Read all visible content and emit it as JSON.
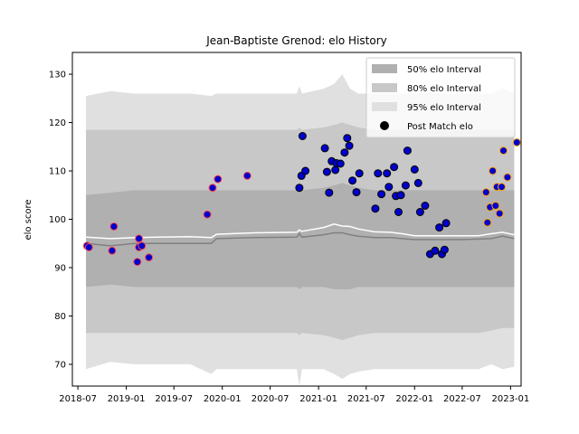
{
  "chart_data": {
    "type": "scatter",
    "title": "Jean-Baptiste Grenod: elo History",
    "xlabel": "",
    "ylabel": "elo score",
    "x_tick_labels": [
      "2018-07",
      "2019-01",
      "2019-07",
      "2020-01",
      "2020-07",
      "2021-01",
      "2021-07",
      "2022-01",
      "2022-07",
      "2023-01"
    ],
    "y_ticks": [
      70,
      80,
      90,
      100,
      110,
      120,
      130
    ],
    "ylim": [
      65.5,
      134.5
    ],
    "xlim": [
      "2018-06-10",
      "2023-02-10"
    ],
    "grid": false,
    "legend_position": "upper right",
    "legend": {
      "band50": "50% elo Interval",
      "band80": "80% elo Interval",
      "band95": "95% elo Interval",
      "points": "Post Match elo"
    },
    "colors": {
      "band50": "#b0b0b0",
      "band80": "#c8c8c8",
      "band95": "#e0e0e0",
      "median_line": "#808080",
      "mean_line": "#ffffff",
      "point_fill": "#0000cc",
      "point_edge_default": "#000000",
      "point_edge_red": "#ff4d4d",
      "point_edge_orange": "#ffa500"
    },
    "bands": {
      "x": [
        "2018-08-01",
        "2018-11-01",
        "2019-02-01",
        "2019-05-01",
        "2019-09-01",
        "2019-11-20",
        "2019-12-10",
        "2020-05-01",
        "2020-10-10",
        "2020-10-20",
        "2020-10-30",
        "2021-01-20",
        "2021-03-01",
        "2021-04-01",
        "2021-05-01",
        "2021-06-01",
        "2021-08-01",
        "2021-10-01",
        "2021-11-15",
        "2022-01-01",
        "2022-03-01",
        "2022-05-01",
        "2022-07-01",
        "2022-09-01",
        "2022-10-20",
        "2022-12-01",
        "2023-01-15"
      ],
      "p95_upper": [
        125.5,
        126.5,
        126,
        126,
        126,
        125.5,
        126,
        126,
        126,
        127.5,
        126,
        127,
        128,
        130,
        127,
        126,
        126,
        126,
        126,
        126,
        126,
        126,
        126,
        126,
        126,
        127,
        126
      ],
      "p95_lower": [
        69,
        70.5,
        70,
        70,
        70,
        68,
        69,
        69,
        69,
        65.5,
        69,
        69,
        68,
        67,
        68,
        68.5,
        69,
        69,
        69,
        69,
        69,
        69,
        69,
        69,
        70,
        69,
        69.5
      ],
      "p80_upper": [
        118.5,
        118.5,
        118.5,
        118.5,
        118.5,
        118.5,
        118.5,
        118.5,
        118.5,
        119,
        118.5,
        119,
        119.5,
        120,
        119.5,
        119,
        118.5,
        118.5,
        118.5,
        118.5,
        118.5,
        118.5,
        118.5,
        118.5,
        118.5,
        118.5,
        118.5
      ],
      "p80_lower": [
        76.5,
        76.5,
        76.5,
        76.5,
        76.5,
        76.5,
        76.5,
        76.5,
        76.5,
        76,
        76.5,
        76,
        75.5,
        75,
        75.5,
        76,
        76.5,
        76.5,
        76.5,
        76.5,
        76.5,
        76.5,
        76.5,
        76.5,
        77,
        77.5,
        77.5
      ],
      "p50_upper": [
        105,
        105.5,
        106,
        106,
        106,
        106,
        106,
        106,
        106,
        106.5,
        106,
        106.5,
        107,
        107.5,
        107,
        106.5,
        106,
        106,
        106,
        106,
        106,
        106,
        106,
        106,
        106,
        106,
        106
      ],
      "p50_lower": [
        86,
        86.5,
        86,
        86,
        86,
        86,
        86,
        86,
        86,
        85.5,
        86,
        86,
        85.5,
        85.5,
        85.5,
        86,
        86,
        86,
        86,
        86,
        86,
        86,
        86,
        86,
        86,
        86,
        86
      ]
    },
    "median_line": {
      "x": [
        "2018-08-01",
        "2018-11-01",
        "2019-02-01",
        "2019-05-01",
        "2019-09-01",
        "2019-11-20",
        "2019-12-10",
        "2020-05-01",
        "2020-10-10",
        "2020-10-20",
        "2020-10-30",
        "2021-01-20",
        "2021-03-01",
        "2021-04-01",
        "2021-05-01",
        "2021-06-01",
        "2021-08-01",
        "2021-10-01",
        "2021-11-15",
        "2022-01-01",
        "2022-03-01",
        "2022-05-01",
        "2022-07-01",
        "2022-09-01",
        "2022-10-20",
        "2022-12-01",
        "2023-01-15"
      ],
      "y": [
        95,
        94.5,
        95,
        95,
        95,
        95,
        96,
        96.2,
        96.3,
        97,
        96.3,
        96.8,
        97.2,
        97.2,
        96.8,
        96.5,
        96.2,
        96.2,
        96,
        95.8,
        95.8,
        95.8,
        95.8,
        95.9,
        96,
        96.5,
        96
      ]
    },
    "mean_line": {
      "x": [
        "2018-08-01",
        "2018-11-01",
        "2019-02-01",
        "2019-05-01",
        "2019-09-01",
        "2019-11-20",
        "2019-12-10",
        "2020-05-01",
        "2020-10-10",
        "2020-10-20",
        "2020-10-30",
        "2021-01-20",
        "2021-03-01",
        "2021-04-01",
        "2021-05-01",
        "2021-06-01",
        "2021-08-01",
        "2021-10-01",
        "2021-11-15",
        "2022-01-01",
        "2022-03-01",
        "2022-05-01",
        "2022-07-01",
        "2022-09-01",
        "2022-10-20",
        "2022-12-01",
        "2023-01-15"
      ],
      "y": [
        96.3,
        96,
        96.2,
        96.3,
        96.4,
        96.2,
        96.9,
        97.2,
        97.3,
        97.8,
        97.5,
        98.3,
        99,
        98.6,
        98.5,
        98,
        97.4,
        97.3,
        97,
        96.6,
        96.6,
        96.6,
        96.6,
        96.6,
        97,
        97.3,
        96.8
      ]
    },
    "series": [
      {
        "name": "Post Match elo",
        "points": [
          {
            "x": "2018-08-05",
            "y": 94.5,
            "edge": "red"
          },
          {
            "x": "2018-08-12",
            "y": 94.2,
            "edge": "red"
          },
          {
            "x": "2018-11-08",
            "y": 93.5,
            "edge": "red"
          },
          {
            "x": "2018-11-15",
            "y": 98.5,
            "edge": "red"
          },
          {
            "x": "2019-02-12",
            "y": 91.2,
            "edge": "red"
          },
          {
            "x": "2019-02-18",
            "y": 96.0,
            "edge": "red"
          },
          {
            "x": "2019-02-18",
            "y": 94.2,
            "edge": "red"
          },
          {
            "x": "2019-03-01",
            "y": 94.5,
            "edge": "red"
          },
          {
            "x": "2019-03-28",
            "y": 92.1,
            "edge": "red"
          },
          {
            "x": "2019-11-05",
            "y": 101.0,
            "edge": "red"
          },
          {
            "x": "2019-11-25",
            "y": 106.5,
            "edge": "red"
          },
          {
            "x": "2019-12-15",
            "y": 108.3,
            "edge": "red"
          },
          {
            "x": "2020-04-05",
            "y": 109.0,
            "edge": "red"
          },
          {
            "x": "2020-10-20",
            "y": 106.5,
            "edge": "default"
          },
          {
            "x": "2020-10-28",
            "y": 109.0,
            "edge": "default"
          },
          {
            "x": "2020-11-01",
            "y": 117.2,
            "edge": "default"
          },
          {
            "x": "2020-11-12",
            "y": 110.0,
            "edge": "default"
          },
          {
            "x": "2021-01-25",
            "y": 114.7,
            "edge": "default"
          },
          {
            "x": "2021-02-02",
            "y": 109.8,
            "edge": "default"
          },
          {
            "x": "2021-02-10",
            "y": 105.5,
            "edge": "default"
          },
          {
            "x": "2021-02-20",
            "y": 112.0,
            "edge": "default"
          },
          {
            "x": "2021-03-06",
            "y": 110.2,
            "edge": "default"
          },
          {
            "x": "2021-03-10",
            "y": 111.6,
            "edge": "default"
          },
          {
            "x": "2021-03-25",
            "y": 111.5,
            "edge": "default"
          },
          {
            "x": "2021-04-10",
            "y": 113.8,
            "edge": "default"
          },
          {
            "x": "2021-04-20",
            "y": 116.8,
            "edge": "default"
          },
          {
            "x": "2021-04-28",
            "y": 115.2,
            "edge": "default"
          },
          {
            "x": "2021-05-10",
            "y": 108.0,
            "edge": "default"
          },
          {
            "x": "2021-05-25",
            "y": 105.6,
            "edge": "default"
          },
          {
            "x": "2021-06-05",
            "y": 109.5,
            "edge": "default"
          },
          {
            "x": "2021-08-05",
            "y": 102.2,
            "edge": "default"
          },
          {
            "x": "2021-08-15",
            "y": 109.5,
            "edge": "default"
          },
          {
            "x": "2021-08-28",
            "y": 105.2,
            "edge": "default"
          },
          {
            "x": "2021-09-18",
            "y": 109.5,
            "edge": "default"
          },
          {
            "x": "2021-09-25",
            "y": 106.7,
            "edge": "default"
          },
          {
            "x": "2021-10-15",
            "y": 110.8,
            "edge": "default"
          },
          {
            "x": "2021-10-22",
            "y": 104.8,
            "edge": "default"
          },
          {
            "x": "2021-11-01",
            "y": 101.5,
            "edge": "default"
          },
          {
            "x": "2021-11-10",
            "y": 105.0,
            "edge": "default"
          },
          {
            "x": "2021-11-28",
            "y": 107.0,
            "edge": "default"
          },
          {
            "x": "2021-12-05",
            "y": 114.2,
            "edge": "default"
          },
          {
            "x": "2022-01-01",
            "y": 110.3,
            "edge": "default"
          },
          {
            "x": "2022-01-15",
            "y": 107.5,
            "edge": "default"
          },
          {
            "x": "2022-01-22",
            "y": 101.5,
            "edge": "default"
          },
          {
            "x": "2022-02-10",
            "y": 102.8,
            "edge": "default"
          },
          {
            "x": "2022-03-01",
            "y": 92.8,
            "edge": "default"
          },
          {
            "x": "2022-03-20",
            "y": 93.5,
            "edge": "default"
          },
          {
            "x": "2022-04-05",
            "y": 98.3,
            "edge": "default"
          },
          {
            "x": "2022-04-15",
            "y": 92.8,
            "edge": "default"
          },
          {
            "x": "2022-04-25",
            "y": 93.7,
            "edge": "default"
          },
          {
            "x": "2022-05-01",
            "y": 99.2,
            "edge": "default"
          },
          {
            "x": "2022-09-30",
            "y": 105.6,
            "edge": "orange"
          },
          {
            "x": "2022-10-05",
            "y": 99.3,
            "edge": "orange"
          },
          {
            "x": "2022-10-15",
            "y": 102.5,
            "edge": "orange"
          },
          {
            "x": "2022-10-25",
            "y": 110.0,
            "edge": "orange"
          },
          {
            "x": "2022-11-05",
            "y": 102.8,
            "edge": "orange"
          },
          {
            "x": "2022-11-10",
            "y": 106.7,
            "edge": "orange"
          },
          {
            "x": "2022-11-20",
            "y": 101.2,
            "edge": "orange"
          },
          {
            "x": "2022-11-28",
            "y": 106.7,
            "edge": "orange"
          },
          {
            "x": "2022-12-05",
            "y": 114.2,
            "edge": "orange"
          },
          {
            "x": "2022-12-20",
            "y": 108.7,
            "edge": "orange"
          },
          {
            "x": "2023-01-25",
            "y": 115.9,
            "edge": "orange"
          }
        ]
      }
    ]
  }
}
